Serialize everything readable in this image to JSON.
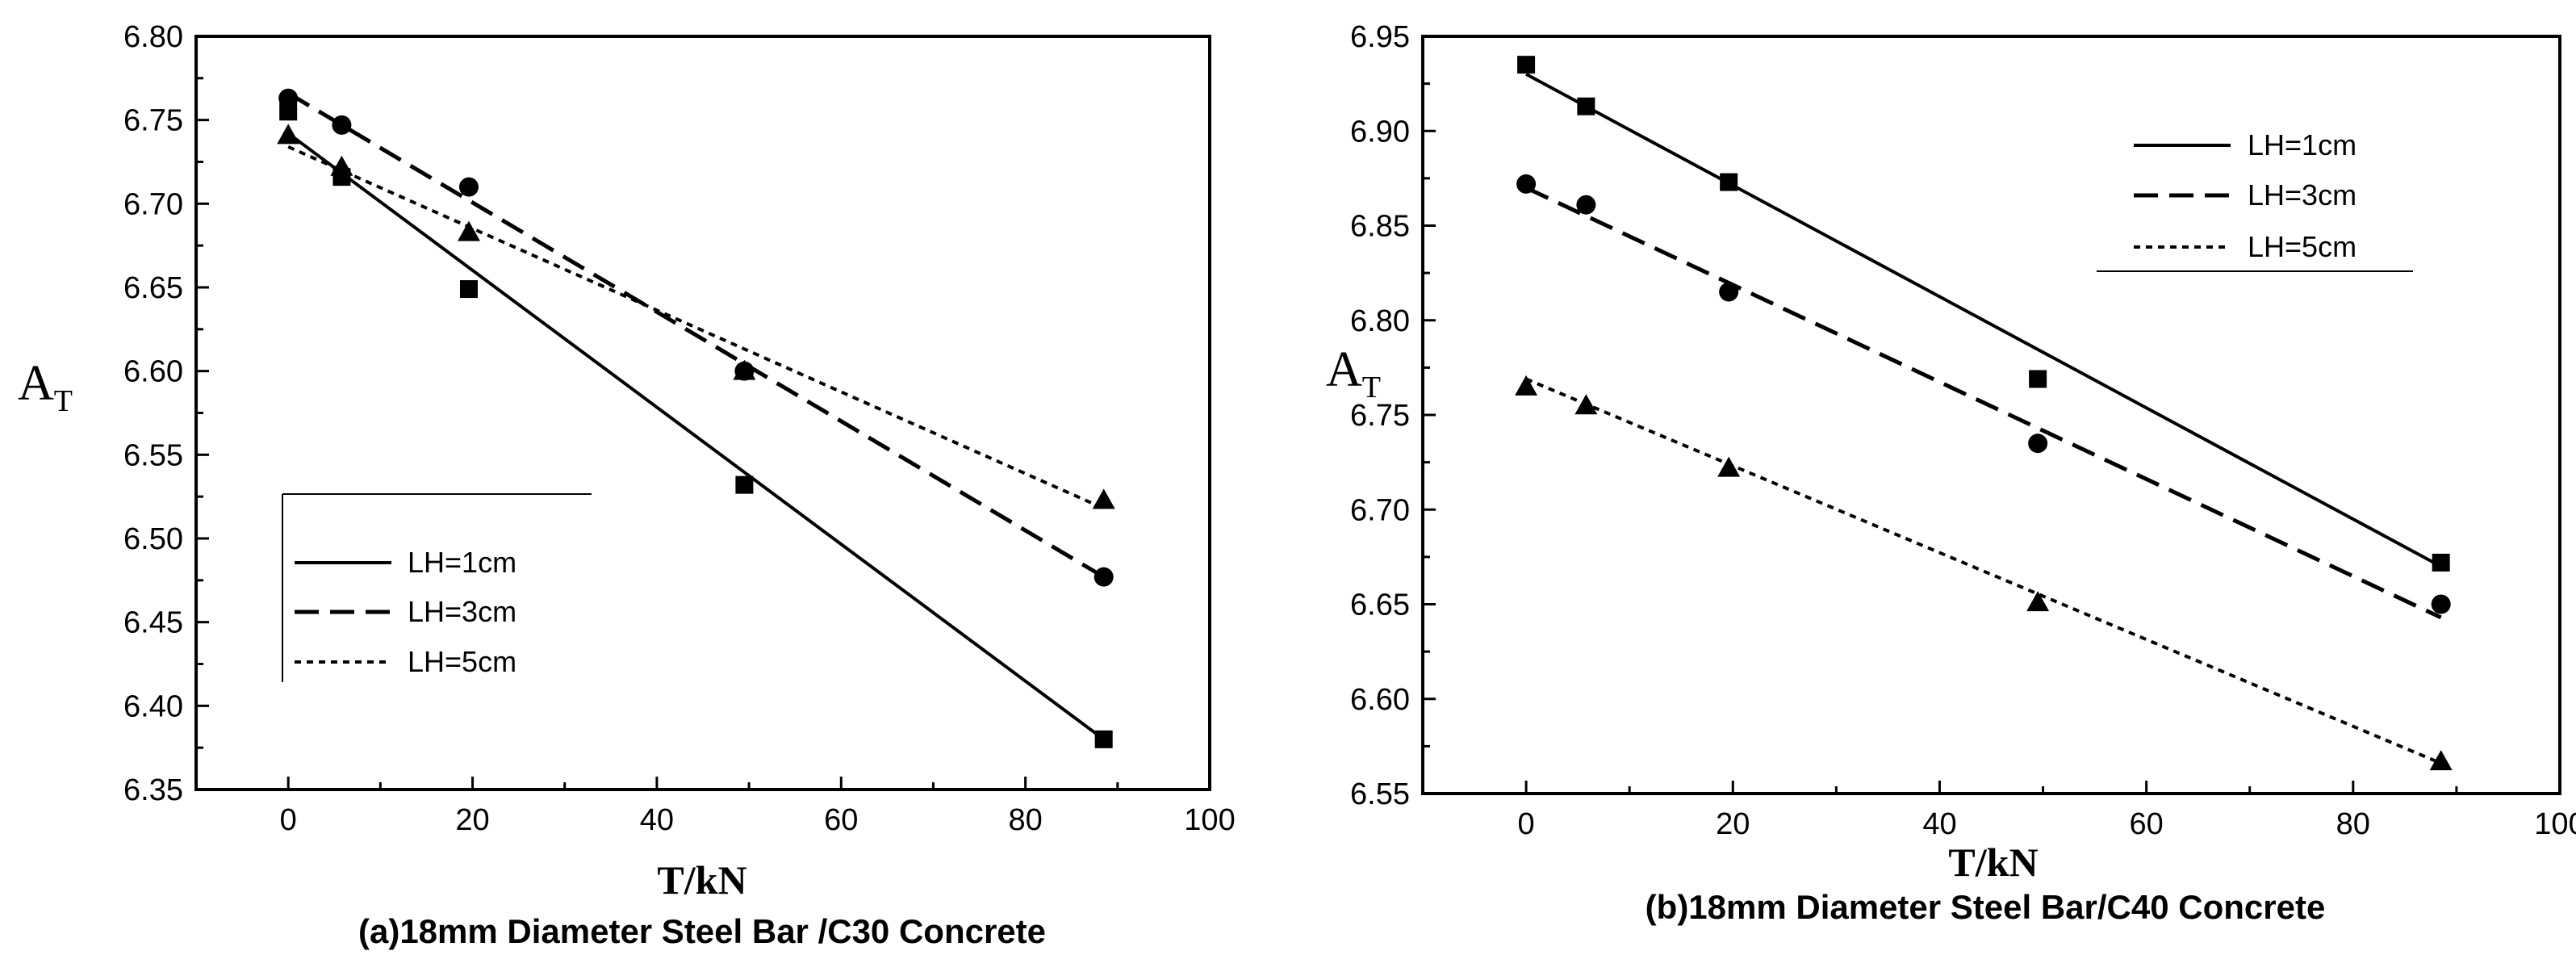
{
  "chart_data": [
    {
      "type": "scatter",
      "caption": "(a)18mm Diameter Steel Bar /C30 Concrete",
      "xlabel": "T/kN",
      "ylabel": "A",
      "ylabel_sub": "T",
      "xlim": [
        -10,
        100
      ],
      "ylim": [
        6.35,
        6.8
      ],
      "xticks": [
        "0",
        "20",
        "40",
        "60",
        "80",
        "100"
      ],
      "yticks": [
        "6.35",
        "6.40",
        "6.45",
        "6.50",
        "6.55",
        "6.60",
        "6.65",
        "6.70",
        "6.75",
        "6.80"
      ],
      "legend_position": "lower-left",
      "series": [
        {
          "name": "LH=1cm",
          "marker": "square",
          "line": "solid",
          "x": [
            0,
            5.8,
            19.6,
            49.5,
            88.5
          ],
          "y": [
            6.755,
            6.716,
            6.649,
            6.532,
            6.38
          ],
          "fit": [
            [
              0,
              6.742
            ],
            [
              88.5,
              6.38
            ]
          ]
        },
        {
          "name": "LH=3cm",
          "marker": "circle",
          "line": "dashed",
          "x": [
            0,
            5.8,
            19.6,
            49.5,
            88.5
          ],
          "y": [
            6.763,
            6.747,
            6.71,
            6.6,
            6.477
          ],
          "fit": [
            [
              0,
              6.766
            ],
            [
              88.5,
              6.477
            ]
          ]
        },
        {
          "name": "LH=5cm",
          "marker": "triangle",
          "line": "dotted",
          "x": [
            0,
            5.8,
            19.6,
            49.5,
            88.5
          ],
          "y": [
            6.741,
            6.722,
            6.683,
            6.6,
            6.523
          ],
          "fit": [
            [
              0,
              6.734
            ],
            [
              88.5,
              6.518
            ]
          ]
        }
      ]
    },
    {
      "type": "scatter",
      "caption": "(b)18mm Diameter Steel Bar/C40 Concrete",
      "xlabel": "T/kN",
      "ylabel": "A",
      "ylabel_sub": "T",
      "xlim": [
        -10,
        100
      ],
      "ylim": [
        6.55,
        6.95
      ],
      "xticks": [
        "0",
        "20",
        "40",
        "60",
        "80",
        "100"
      ],
      "yticks": [
        "6.55",
        "6.60",
        "6.65",
        "6.70",
        "6.75",
        "6.80",
        "6.85",
        "6.90",
        "6.95"
      ],
      "legend_position": "top-right",
      "series": [
        {
          "name": "LH=1cm",
          "marker": "square",
          "line": "solid",
          "x": [
            0,
            5.8,
            19.6,
            49.5,
            88.5
          ],
          "y": [
            6.935,
            6.913,
            6.873,
            6.769,
            6.672
          ],
          "fit": [
            [
              0,
              6.93
            ],
            [
              88.5,
              6.67
            ]
          ]
        },
        {
          "name": "LH=3cm",
          "marker": "circle",
          "line": "dashed",
          "x": [
            0,
            5.8,
            19.6,
            49.5,
            88.5
          ],
          "y": [
            6.872,
            6.861,
            6.815,
            6.735,
            6.65
          ],
          "fit": [
            [
              0,
              6.87
            ],
            [
              88.5,
              6.643
            ]
          ]
        },
        {
          "name": "LH=5cm",
          "marker": "triangle",
          "line": "dotted",
          "x": [
            0,
            5.8,
            19.6,
            49.5,
            88.5
          ],
          "y": [
            6.765,
            6.755,
            6.722,
            6.651,
            6.567
          ],
          "fit": [
            [
              0,
              6.769
            ],
            [
              88.5,
              6.566
            ]
          ]
        }
      ]
    }
  ]
}
